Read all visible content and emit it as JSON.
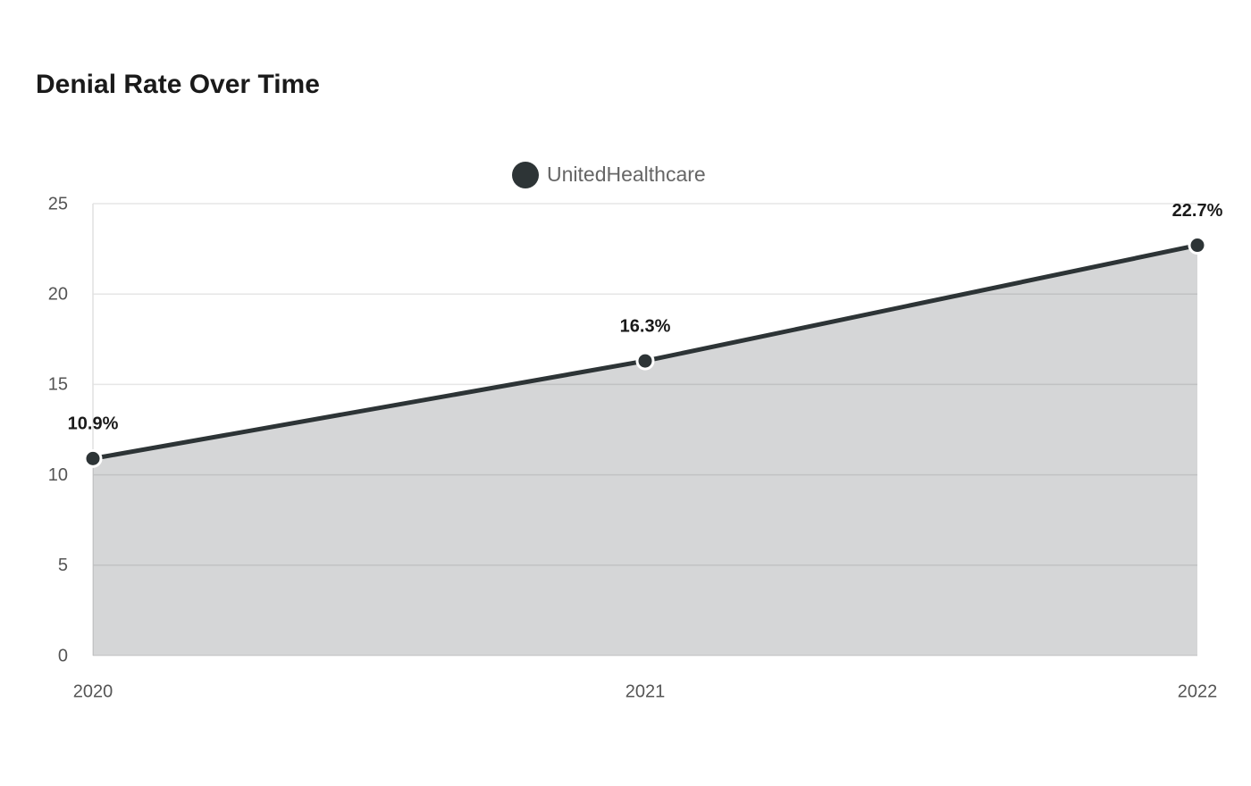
{
  "chart_data": {
    "type": "area",
    "title": "Denial Rate Over Time",
    "categories": [
      "2020",
      "2021",
      "2022"
    ],
    "series": [
      {
        "name": "UnitedHealthcare",
        "color": "#2d3436",
        "values": [
          10.9,
          16.3,
          22.7
        ],
        "value_labels": [
          "10.9%",
          "16.3%",
          "22.7%"
        ]
      }
    ],
    "ylim": [
      0,
      25
    ],
    "yticks": [
      0,
      5,
      10,
      15,
      20,
      25
    ],
    "grid": true,
    "legend": "top"
  }
}
